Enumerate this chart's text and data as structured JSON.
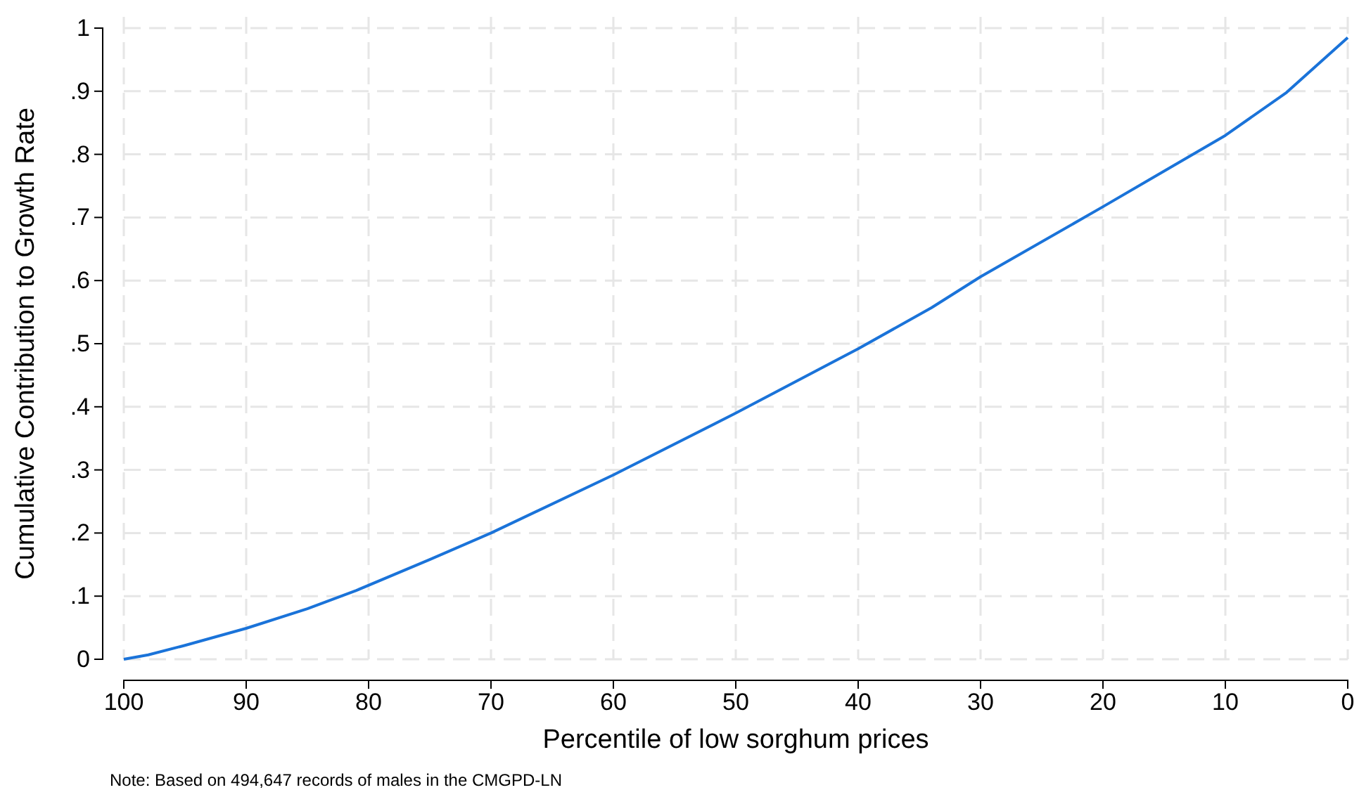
{
  "chart_data": {
    "type": "line",
    "xlabel": "Percentile of low sorghum prices",
    "ylabel": "Cumulative Contribution to Growth Rate",
    "annotations": [
      "Note: Based on 494,647 records of males in the CMGPD-LN"
    ],
    "x": [
      100,
      98,
      95,
      90,
      85,
      81,
      75,
      70,
      60,
      50,
      40,
      34,
      30,
      20,
      10,
      5,
      0
    ],
    "series": [
      {
        "color": "#1a73d9",
        "values": [
          0,
          0.007,
          0.022,
          0.049,
          0.08,
          0.109,
          0.158,
          0.2,
          0.292,
          0.39,
          0.492,
          0.557,
          0.606,
          0.717,
          0.83,
          0.898,
          0.985
        ]
      }
    ],
    "xlim": [
      100,
      0
    ],
    "xticks": [
      100,
      90,
      80,
      70,
      60,
      50,
      40,
      30,
      20,
      10,
      0
    ],
    "ylim": [
      0,
      1
    ],
    "yticks": [
      0,
      {
        "value": 0.1,
        "label": ".1"
      },
      {
        "value": 0.2,
        "label": ".2"
      },
      {
        "value": 0.3,
        "label": ".3"
      },
      {
        "value": 0.4,
        "label": ".4"
      },
      {
        "value": 0.5,
        "label": ".5"
      },
      {
        "value": 0.6,
        "label": ".6"
      },
      {
        "value": 0.7,
        "label": ".7"
      },
      {
        "value": 0.8,
        "label": ".8"
      },
      {
        "value": 0.9,
        "label": ".9"
      },
      1
    ],
    "grid": true,
    "line_style": "solid",
    "marker": "none"
  }
}
